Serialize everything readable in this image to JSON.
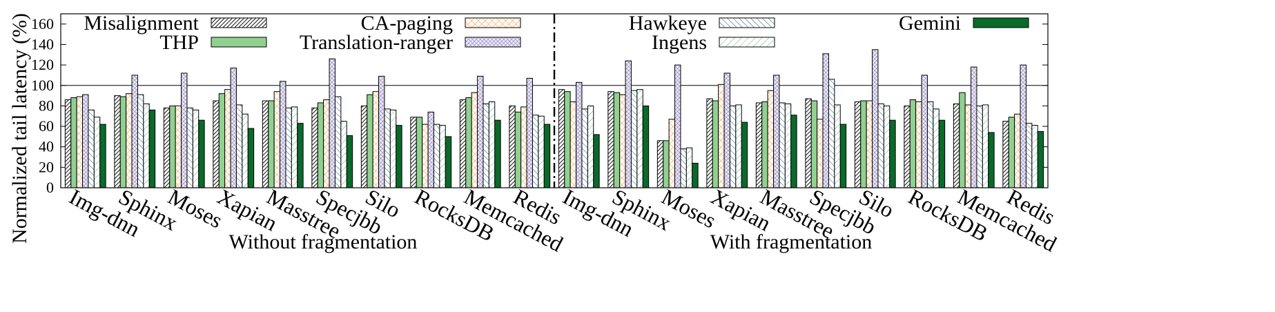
{
  "chart_data": {
    "type": "bar",
    "ylabel": "Normalized tail latency (%)",
    "ylim": [
      0,
      170
    ],
    "yticks": [
      0,
      20,
      40,
      60,
      80,
      100,
      120,
      140,
      160
    ],
    "reference_line": 100,
    "legend_placement": "top, inside plot, four columns",
    "groups": [
      {
        "label": "Without fragmentation",
        "categories": [
          "Img-dnn",
          "Sphinx",
          "Moses",
          "Xapian",
          "Masstree",
          "Specjbb",
          "Silo",
          "RocksDB",
          "Memcached",
          "Redis"
        ]
      },
      {
        "label": "With fragmentation",
        "categories": [
          "Img-dnn",
          "Sphinx",
          "Moses",
          "Xapian",
          "Masstree",
          "Specjbb",
          "Silo",
          "RocksDB",
          "Memcached",
          "Redis"
        ]
      }
    ],
    "series": [
      {
        "name": "Misalignment",
        "pattern": "dense-diagonal",
        "color": "#333333",
        "values": [
          86,
          90,
          78,
          85,
          85,
          78,
          80,
          69,
          86,
          80,
          96,
          94,
          46,
          87,
          83,
          87,
          84,
          80,
          82,
          65
        ]
      },
      {
        "name": "THP",
        "pattern": "solid",
        "color": "#90d090",
        "values": [
          88,
          89,
          80,
          92,
          85,
          83,
          91,
          69,
          88,
          74,
          94,
          93,
          46,
          85,
          84,
          85,
          85,
          86,
          93,
          69
        ]
      },
      {
        "name": "CA-paging",
        "pattern": "crosshatch",
        "color": "#e8a060",
        "values": [
          89,
          92,
          80,
          96,
          94,
          86,
          94,
          62,
          93,
          79,
          84,
          91,
          67,
          101,
          95,
          67,
          85,
          84,
          81,
          72
        ]
      },
      {
        "name": "Translation-ranger",
        "pattern": "dense-crosshatch",
        "color": "#8a80c0",
        "values": [
          91,
          110,
          112,
          117,
          104,
          126,
          109,
          74,
          109,
          107,
          103,
          124,
          120,
          112,
          110,
          131,
          135,
          110,
          118,
          120
        ]
      },
      {
        "name": "Hawkeye",
        "pattern": "back-diagonal",
        "color": "#5a8aa0",
        "values": [
          76,
          91,
          78,
          81,
          78,
          89,
          77,
          62,
          82,
          71,
          77,
          95,
          38,
          80,
          83,
          106,
          82,
          84,
          80,
          63
        ]
      },
      {
        "name": "Ingens",
        "pattern": "light-diagonal",
        "color": "#70c090",
        "values": [
          69,
          82,
          76,
          72,
          79,
          65,
          76,
          61,
          84,
          70,
          80,
          96,
          39,
          81,
          82,
          81,
          80,
          77,
          81,
          61
        ]
      },
      {
        "name": "Gemini",
        "pattern": "solid",
        "color": "#0a6a2a",
        "values": [
          62,
          76,
          66,
          58,
          63,
          51,
          61,
          50,
          66,
          62,
          52,
          80,
          24,
          64,
          71,
          62,
          66,
          66,
          54,
          55
        ]
      }
    ]
  }
}
